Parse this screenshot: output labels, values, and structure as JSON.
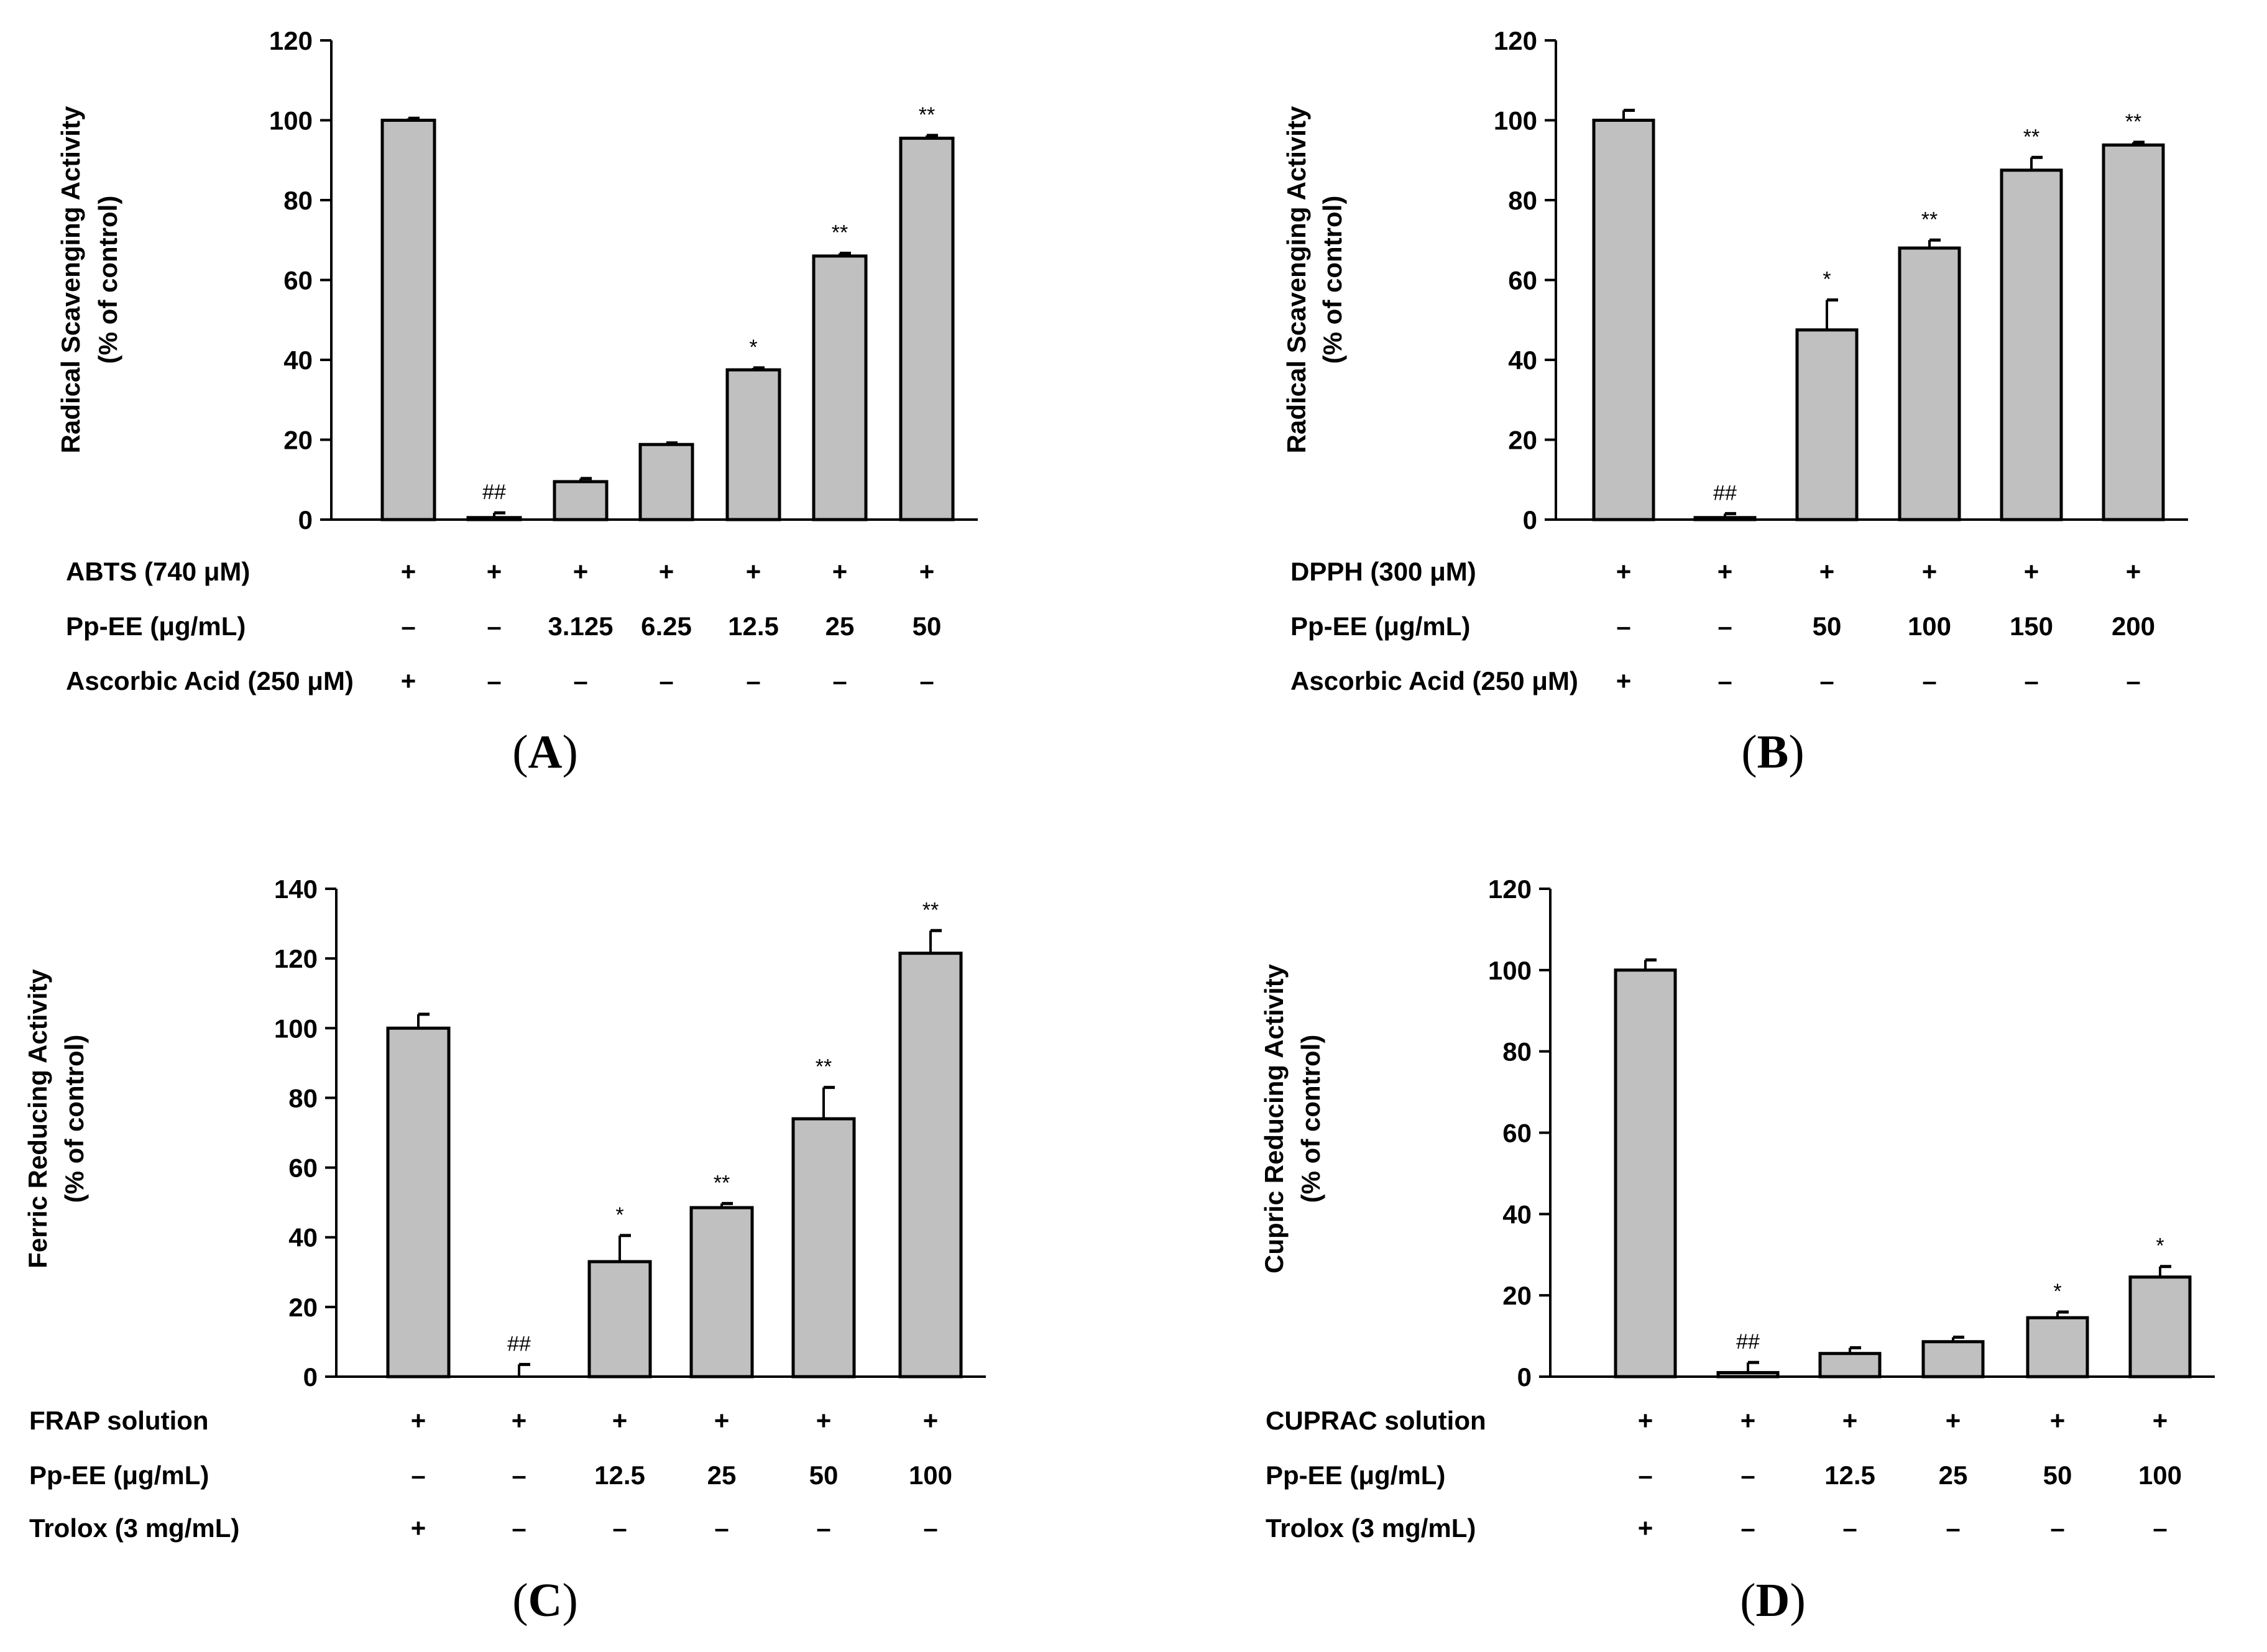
{
  "chart_data": [
    {
      "type": "bar",
      "panel": "A",
      "ylabel": [
        "Radical Scavenging Activity",
        "(% of control)"
      ],
      "ylim": [
        0,
        120
      ],
      "yticks": [
        0,
        20,
        40,
        60,
        80,
        100,
        120
      ],
      "values": [
        100,
        0.5,
        9.5,
        18.8,
        37.5,
        66,
        95.5
      ],
      "errors": [
        0.5,
        1.2,
        0.8,
        0.4,
        0.5,
        0.7,
        0.7
      ],
      "significance": [
        "",
        "##",
        "",
        "",
        "*",
        "**",
        "**"
      ],
      "rows": [
        {
          "label": "ABTS (740 μM)",
          "marks": [
            "+",
            "+",
            "+",
            "+",
            "+",
            "+",
            "+"
          ]
        },
        {
          "label": "Pp-EE (μg/mL)",
          "marks": [
            "–",
            "–",
            "3.125",
            "6.25",
            "12.5",
            "25",
            "50"
          ]
        },
        {
          "label": "Ascorbic Acid (250 μM)",
          "marks": [
            "+",
            "–",
            "–",
            "–",
            "–",
            "–",
            "–"
          ]
        }
      ]
    },
    {
      "type": "bar",
      "panel": "B",
      "ylabel": [
        "Radical Scavenging Activity",
        "(% of control)"
      ],
      "ylim": [
        0,
        120
      ],
      "yticks": [
        0,
        20,
        40,
        60,
        80,
        100,
        120
      ],
      "values": [
        100,
        0.5,
        47.5,
        68,
        87.5,
        93.8
      ],
      "errors": [
        2.5,
        1,
        7.5,
        2,
        3.2,
        0.7
      ],
      "significance": [
        "",
        "##",
        "*",
        "**",
        "**",
        "**"
      ],
      "rows": [
        {
          "label": "DPPH (300 μM)",
          "marks": [
            "+",
            "+",
            "+",
            "+",
            "+",
            "+"
          ]
        },
        {
          "label": "Pp-EE (μg/mL)",
          "marks": [
            "–",
            "–",
            "50",
            "100",
            "150",
            "200"
          ]
        },
        {
          "label": "Ascorbic Acid (250 μM)",
          "marks": [
            "+",
            "–",
            "–",
            "–",
            "–",
            "–"
          ]
        }
      ]
    },
    {
      "type": "bar",
      "panel": "C",
      "ylabel": [
        "Ferric Reducing Activity",
        "(% of control)"
      ],
      "ylim": [
        0,
        140
      ],
      "yticks": [
        0,
        20,
        40,
        60,
        80,
        100,
        120,
        140
      ],
      "values": [
        100,
        0,
        33,
        48.5,
        74,
        121.5
      ],
      "errors": [
        4,
        3.5,
        7.5,
        1.2,
        9,
        6.5
      ],
      "significance": [
        "",
        "##",
        "*",
        "**",
        "**",
        "**"
      ],
      "rows": [
        {
          "label": "FRAP solution",
          "marks": [
            "+",
            "+",
            "+",
            "+",
            "+",
            "+"
          ]
        },
        {
          "label": "Pp-EE (μg/mL)",
          "marks": [
            "–",
            "–",
            "12.5",
            "25",
            "50",
            "100"
          ]
        },
        {
          "label": "Trolox (3 mg/mL)",
          "marks": [
            "+",
            "–",
            "–",
            "–",
            "–",
            "–"
          ]
        }
      ]
    },
    {
      "type": "bar",
      "panel": "D",
      "ylabel": [
        "Cupric Reducing Activity",
        "(% of control)"
      ],
      "ylim": [
        0,
        120
      ],
      "yticks": [
        0,
        20,
        40,
        60,
        80,
        100,
        120
      ],
      "values": [
        100,
        1,
        5.7,
        8.6,
        14.5,
        24.5
      ],
      "errors": [
        2.5,
        2.5,
        1.4,
        1.1,
        1.4,
        2.6
      ],
      "significance": [
        "",
        "##",
        "",
        "",
        "*",
        "*"
      ],
      "rows": [
        {
          "label": "CUPRAC solution",
          "marks": [
            "+",
            "+",
            "+",
            "+",
            "+",
            "+"
          ]
        },
        {
          "label": "Pp-EE (μg/mL)",
          "marks": [
            "–",
            "–",
            "12.5",
            "25",
            "50",
            "100"
          ]
        },
        {
          "label": "Trolox (3 mg/mL)",
          "marks": [
            "+",
            "–",
            "–",
            "–",
            "–",
            "–"
          ]
        }
      ]
    }
  ]
}
